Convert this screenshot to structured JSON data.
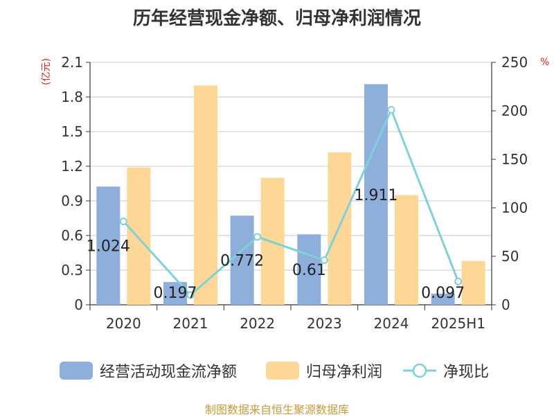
{
  "title": "历年经营现金净额、归母净利润情况",
  "unit_left": "(亿元)",
  "unit_right": "%",
  "source": "制图数据来自恒生聚源数据库",
  "colors": {
    "cashflow": "#8eaedb",
    "netprofit": "#fdd795",
    "ratio": "#7fd1d8"
  },
  "chart_data": {
    "type": "bar",
    "categories": [
      "2020",
      "2021",
      "2022",
      "2023",
      "2024",
      "2025H1"
    ],
    "series": [
      {
        "name": "经营活动现金流净额",
        "type": "bar",
        "axis": "left",
        "values": [
          1.024,
          0.197,
          0.772,
          0.61,
          1.911,
          0.097
        ]
      },
      {
        "name": "归母净利润",
        "type": "bar",
        "axis": "left",
        "values": [
          1.19,
          1.9,
          1.1,
          1.32,
          0.95,
          0.38
        ]
      },
      {
        "name": "净现比",
        "type": "line",
        "axis": "right",
        "values": [
          86,
          10,
          70,
          46,
          201,
          24
        ]
      }
    ],
    "data_labels": [
      "1.024",
      "0.197",
      "0.772",
      "0.61",
      "1.911",
      "0.097"
    ],
    "y_left": {
      "ylim": [
        0,
        2.1
      ],
      "ticks": [
        "0",
        "0.3",
        "0.6",
        "0.9",
        "1.2",
        "1.5",
        "1.8",
        "2.1"
      ]
    },
    "y_right": {
      "ylim": [
        0,
        250
      ],
      "ticks": [
        "0",
        "50",
        "100",
        "150",
        "200",
        "250"
      ]
    },
    "grid": true,
    "legend_position": "bottom"
  }
}
